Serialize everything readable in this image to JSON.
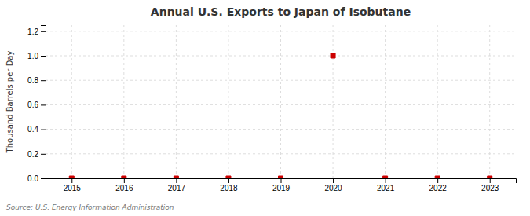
{
  "chart_data": {
    "type": "scatter",
    "title": "Annual U.S. Exports to Japan of Isobutane",
    "ylabel": "Thousand Barrels per Day",
    "annotations": [
      "Source: U.S. Energy Information Administration"
    ],
    "x": [
      2015,
      2016,
      2017,
      2018,
      2019,
      2020,
      2021,
      2022,
      2023
    ],
    "values": [
      0.0,
      0.0,
      0.0,
      0.0,
      0.0,
      1.0,
      0.0,
      0.0,
      0.0
    ],
    "color": "#CC0000",
    "marker": "square",
    "xlim": [
      2014.5,
      2023.5
    ],
    "xticks": [
      2015,
      2016,
      2017,
      2018,
      2019,
      2020,
      2021,
      2022,
      2023
    ],
    "ylim": [
      0.0,
      1.25
    ],
    "yticks": [
      {
        "value": 0.0,
        "label": "0.0"
      },
      0.2,
      0.4,
      0.6,
      0.8,
      {
        "value": 1.0,
        "label": "1.0"
      },
      1.2
    ],
    "grid": true
  }
}
